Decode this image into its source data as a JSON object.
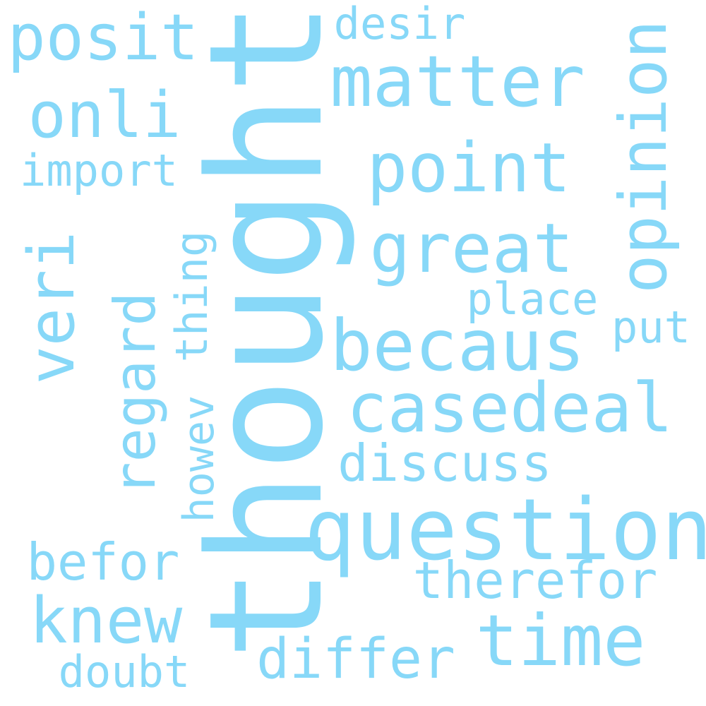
{
  "color": "#87d8f8",
  "background": "#ffffff",
  "words": [
    "thought",
    "question",
    "matter",
    "point",
    "great",
    "becaus",
    "casedeal",
    "opinion",
    "posit",
    "onli",
    "veri",
    "regard",
    "import",
    "thing",
    "howev",
    "desir",
    "place",
    "put",
    "discuss",
    "therefor",
    "befor",
    "knew",
    "time",
    "differ",
    "doubt"
  ]
}
